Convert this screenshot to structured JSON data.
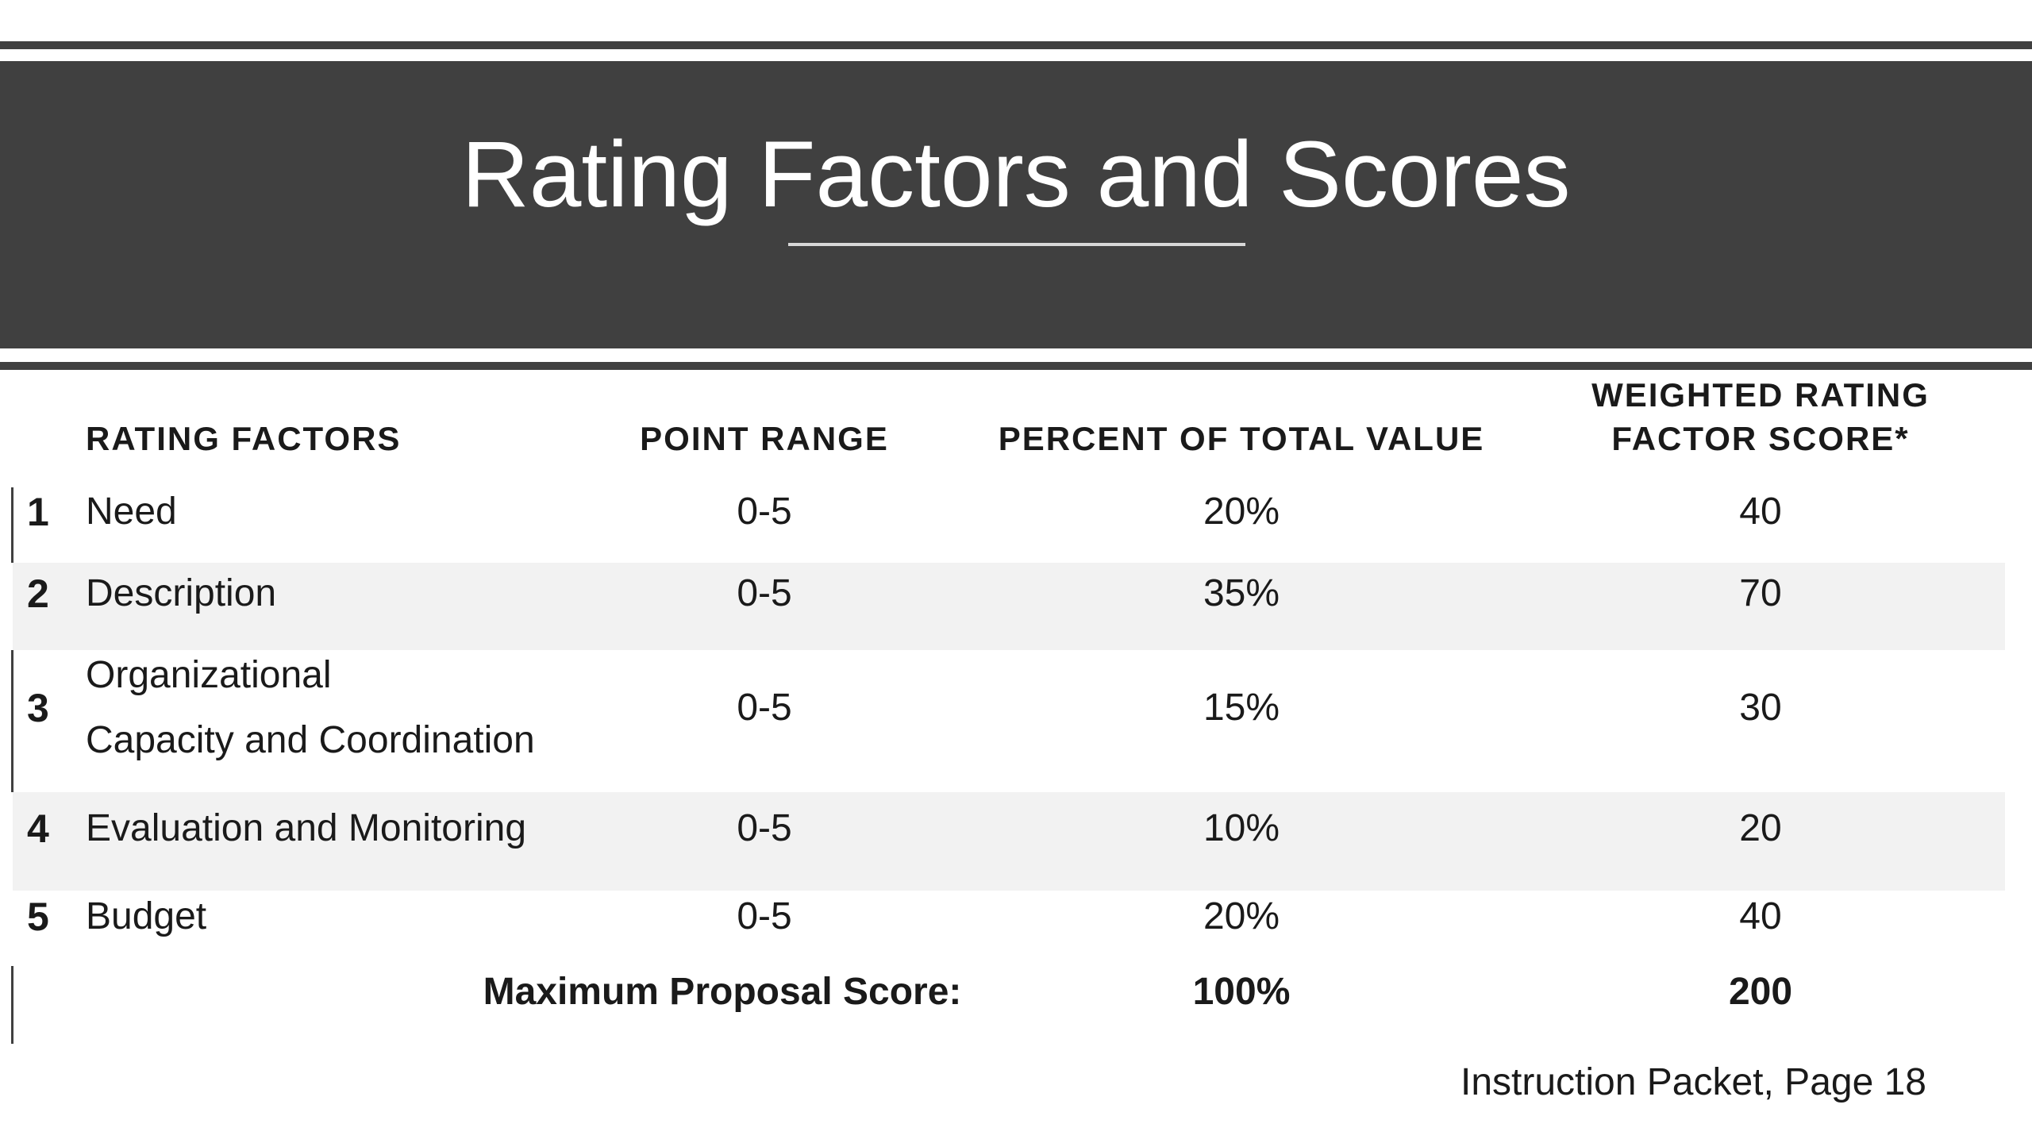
{
  "title": "Rating Factors and Scores",
  "headers": {
    "rating_factors": "RATING FACTORS",
    "point_range": "POINT RANGE",
    "percent_of_total": "PERCENT OF TOTAL VALUE",
    "weighted_line1": "WEIGHTED RATING",
    "weighted_line2": "FACTOR SCORE*"
  },
  "rows": [
    {
      "num": "1",
      "name": "Need",
      "range": "0-5",
      "percent": "20%",
      "score": "40"
    },
    {
      "num": "2",
      "name": "Description",
      "range": "0-5",
      "percent": "35%",
      "score": "70"
    },
    {
      "num": "3",
      "name_line1": "Organizational",
      "name_line2": "Capacity and Coordination",
      "range": "0-5",
      "percent": "15%",
      "score": "30"
    },
    {
      "num": "4",
      "name": "Evaluation and Monitoring",
      "range": "0-5",
      "percent": "10%",
      "score": "20"
    },
    {
      "num": "5",
      "name": "Budget",
      "range": "0-5",
      "percent": "20%",
      "score": "40"
    }
  ],
  "total": {
    "label": "Maximum Proposal Score:",
    "percent": "100%",
    "score": "200"
  },
  "footer": "Instruction Packet, Page 18",
  "colors": {
    "banner": "#404040",
    "stripe": "#f2f2f2"
  }
}
